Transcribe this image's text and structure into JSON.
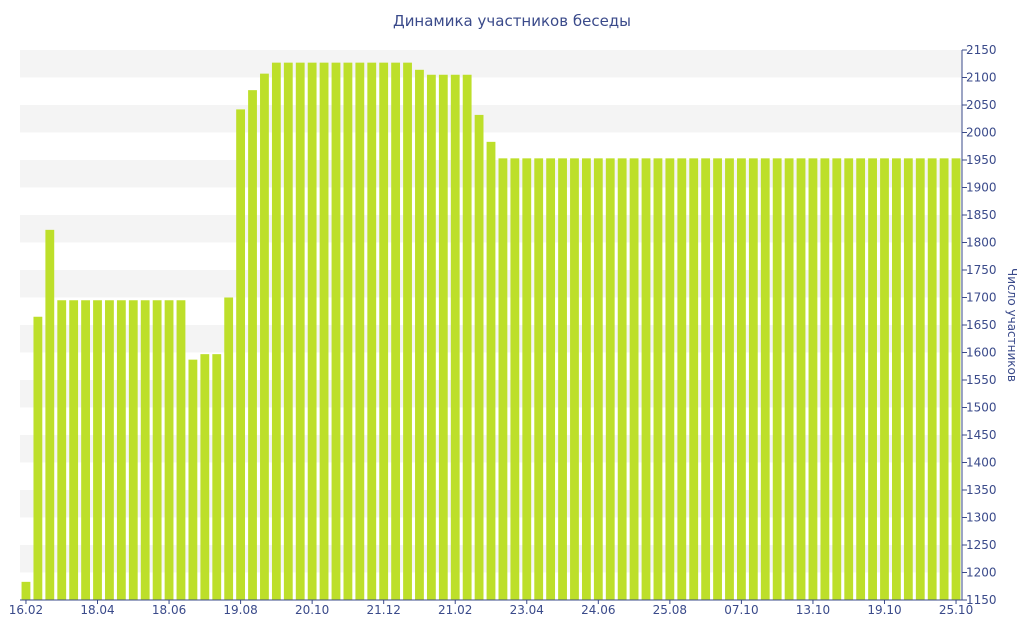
{
  "chart_data": {
    "type": "bar",
    "title": "Динамика участников беседы",
    "xlabel": "",
    "ylabel": "Число участников",
    "ylim": [
      1150,
      2150
    ],
    "ytick_step": 50,
    "x_tick_labels": [
      "16.02",
      "18.04",
      "18.06",
      "19.08",
      "20.10",
      "21.12",
      "21.02",
      "23.04",
      "24.06",
      "25.08",
      "07.10",
      "13.10",
      "19.10",
      "25.10"
    ],
    "x_tick_indices": [
      0,
      6,
      12,
      18,
      24,
      30,
      36,
      42,
      48,
      54,
      60,
      66,
      72,
      78
    ],
    "values": [
      1183,
      1665,
      1823,
      1695,
      1695,
      1695,
      1695,
      1695,
      1695,
      1695,
      1695,
      1695,
      1695,
      1695,
      1587,
      1597,
      1597,
      1700,
      2042,
      2077,
      2107,
      2127,
      2127,
      2127,
      2127,
      2127,
      2127,
      2127,
      2127,
      2127,
      2127,
      2127,
      2127,
      2114,
      2105,
      2105,
      2105,
      2105,
      2032,
      1983,
      1953,
      1953,
      1953,
      1953,
      1953,
      1953,
      1953,
      1953,
      1953,
      1953,
      1953,
      1953,
      1953,
      1953,
      1953,
      1953,
      1953,
      1953,
      1953,
      1953,
      1953,
      1953,
      1953,
      1953,
      1953,
      1953,
      1953,
      1953,
      1953,
      1953,
      1953,
      1953,
      1953,
      1953,
      1953,
      1953,
      1953,
      1953,
      1953
    ],
    "bar_color": "#bddf2a",
    "grid": "alternating horizontal bands",
    "band_color": "#f4f4f4",
    "axis_color": "#3a4a8a",
    "yaxis_position": "right"
  }
}
